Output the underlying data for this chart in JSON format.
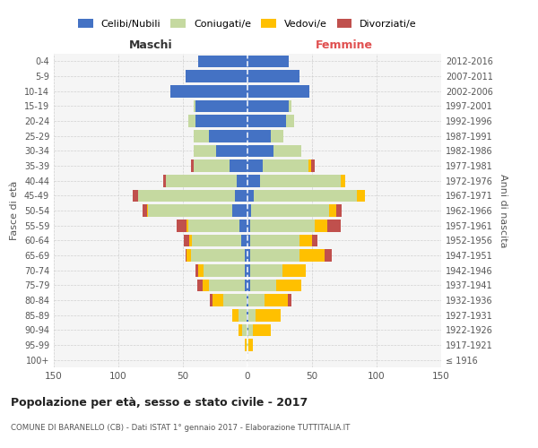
{
  "age_groups": [
    "100+",
    "95-99",
    "90-94",
    "85-89",
    "80-84",
    "75-79",
    "70-74",
    "65-69",
    "60-64",
    "55-59",
    "50-54",
    "45-49",
    "40-44",
    "35-39",
    "30-34",
    "25-29",
    "20-24",
    "15-19",
    "10-14",
    "5-9",
    "0-4"
  ],
  "birth_years": [
    "≤ 1916",
    "1917-1921",
    "1922-1926",
    "1927-1931",
    "1932-1936",
    "1937-1941",
    "1942-1946",
    "1947-1951",
    "1952-1956",
    "1957-1961",
    "1962-1966",
    "1967-1971",
    "1972-1976",
    "1977-1981",
    "1982-1986",
    "1987-1991",
    "1992-1996",
    "1997-2001",
    "2002-2006",
    "2007-2011",
    "2012-2016"
  ],
  "maschi": {
    "celibi": [
      0,
      0,
      0,
      1,
      1,
      2,
      2,
      2,
      5,
      6,
      12,
      10,
      8,
      14,
      24,
      30,
      40,
      40,
      60,
      48,
      38
    ],
    "coniugati": [
      0,
      1,
      4,
      6,
      18,
      28,
      32,
      42,
      38,
      40,
      65,
      75,
      55,
      28,
      18,
      12,
      6,
      2,
      0,
      0,
      0
    ],
    "vedovi": [
      0,
      1,
      3,
      5,
      8,
      5,
      4,
      3,
      2,
      1,
      1,
      0,
      0,
      0,
      0,
      0,
      0,
      0,
      0,
      0,
      0
    ],
    "divorziati": [
      0,
      0,
      0,
      0,
      2,
      4,
      2,
      1,
      4,
      8,
      3,
      4,
      2,
      2,
      0,
      0,
      0,
      0,
      0,
      0,
      0
    ]
  },
  "femmine": {
    "nubili": [
      0,
      0,
      1,
      1,
      1,
      2,
      2,
      2,
      2,
      2,
      3,
      5,
      10,
      12,
      20,
      18,
      30,
      32,
      48,
      40,
      32
    ],
    "coniugate": [
      0,
      1,
      3,
      5,
      12,
      20,
      25,
      38,
      38,
      50,
      60,
      80,
      62,
      35,
      22,
      10,
      6,
      2,
      0,
      0,
      0
    ],
    "vedove": [
      0,
      3,
      14,
      20,
      18,
      20,
      18,
      20,
      10,
      10,
      6,
      6,
      4,
      2,
      0,
      0,
      0,
      0,
      0,
      0,
      0
    ],
    "divorziate": [
      0,
      0,
      0,
      0,
      3,
      0,
      0,
      5,
      4,
      10,
      4,
      0,
      0,
      3,
      0,
      0,
      0,
      0,
      0,
      0,
      0
    ]
  },
  "colors": {
    "celibi": "#4472c4",
    "coniugati": "#c5d9a0",
    "vedovi": "#ffc000",
    "divorziati": "#c0504d"
  },
  "xlim": 150,
  "title": "Popolazione per età, sesso e stato civile - 2017",
  "subtitle": "COMUNE DI BARANELLO (CB) - Dati ISTAT 1° gennaio 2017 - Elaborazione TUTTITALIA.IT",
  "xlabel_left": "Maschi",
  "xlabel_right": "Femmine",
  "ylabel_left": "Fasce di età",
  "ylabel_right": "Anni di nascita",
  "legend_labels": [
    "Celibi/Nubili",
    "Coniugati/e",
    "Vedovi/e",
    "Divorziati/e"
  ],
  "background_color": "#ffffff",
  "grid_color": "#cccccc"
}
